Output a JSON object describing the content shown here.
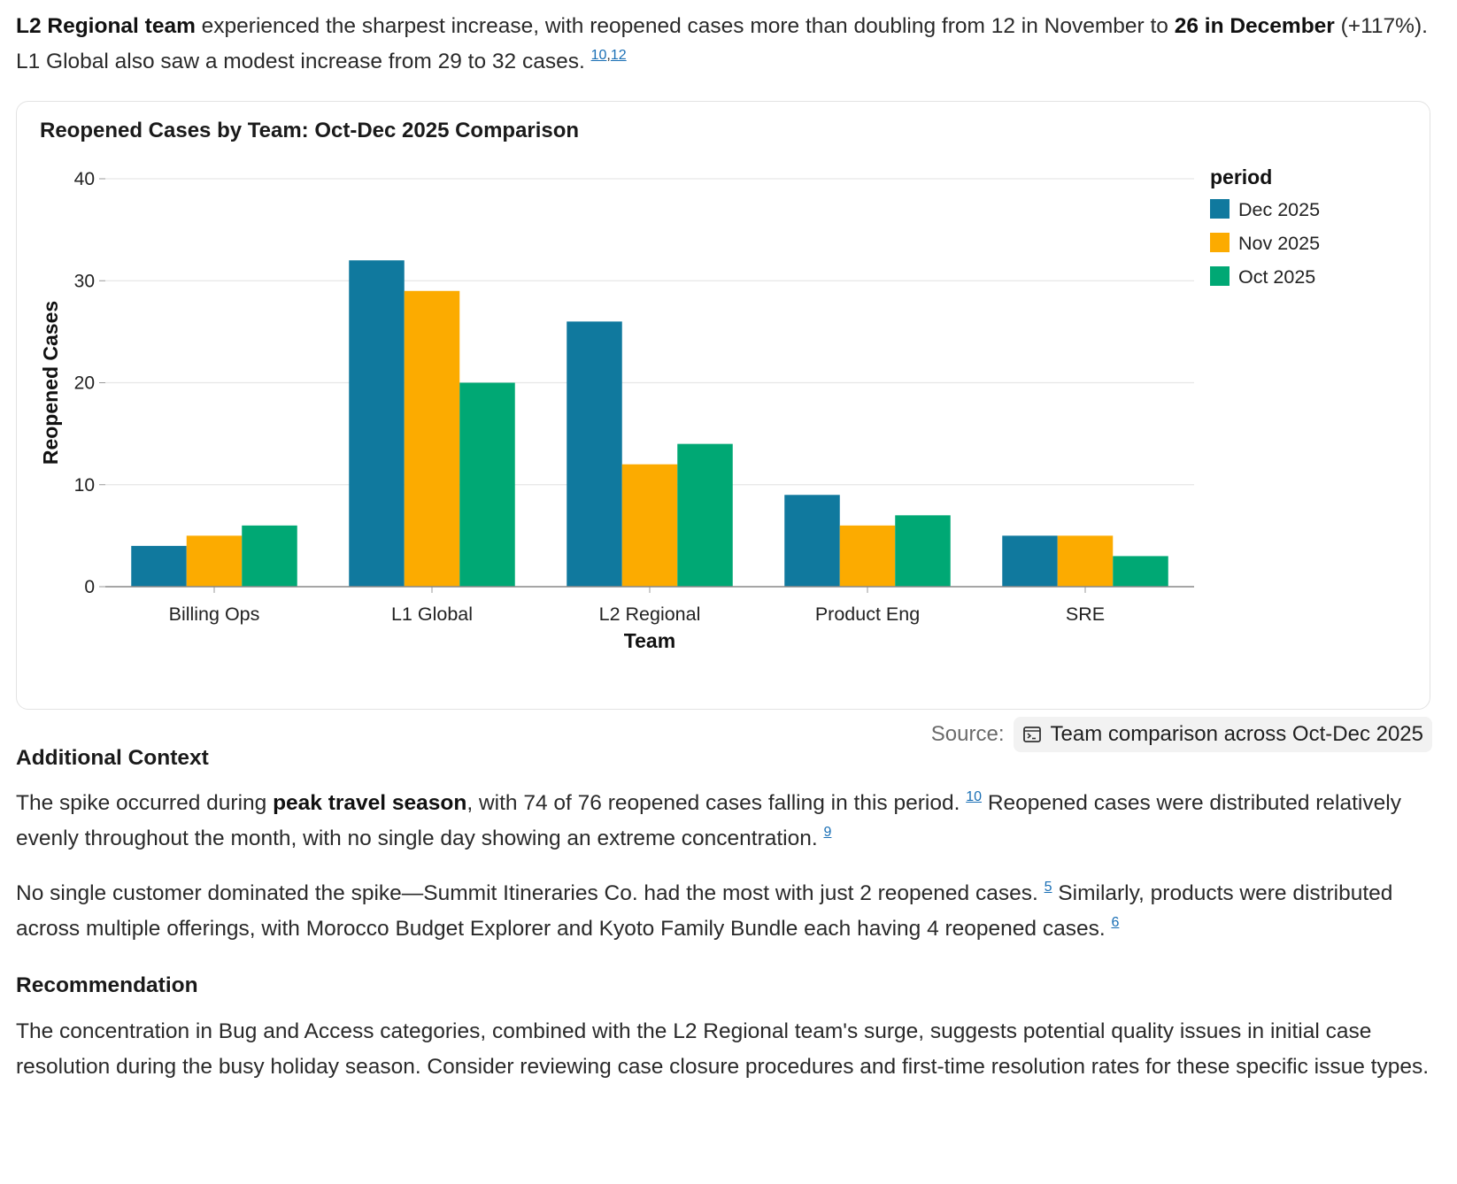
{
  "intro": {
    "part1_bold": "L2 Regional team",
    "part2": " experienced the sharpest increase, with reopened cases more than doubling from 12 in November to ",
    "part3_bold": "26 in December",
    "part4": " (+117%). L1 Global also saw a modest increase from 29 to 32 cases. ",
    "cite_a": "10",
    "cite_sep": ",",
    "cite_b": "12"
  },
  "chart_data": {
    "type": "bar",
    "title": "Reopened Cases by Team: Oct-Dec 2025 Comparison",
    "xlabel": "Team",
    "ylabel": "Reopened Cases",
    "categories": [
      "Billing Ops",
      "L1 Global",
      "L2 Regional",
      "Product Eng",
      "SRE"
    ],
    "series": [
      {
        "name": "Dec 2025",
        "color": "#10799e",
        "values": [
          4,
          32,
          26,
          9,
          5
        ]
      },
      {
        "name": "Nov 2025",
        "color": "#fcab00",
        "values": [
          5,
          29,
          12,
          6,
          5
        ]
      },
      {
        "name": "Oct 2025",
        "color": "#00a874",
        "values": [
          6,
          20,
          14,
          7,
          3
        ]
      }
    ],
    "ylim": [
      0,
      40
    ],
    "yticks": [
      0,
      10,
      20,
      30,
      40
    ],
    "grid": true,
    "legend_title": "period",
    "legend_position": "right"
  },
  "source": {
    "label": "Source:",
    "link_text": "Team comparison across Oct-Dec 2025",
    "icon": "terminal-icon"
  },
  "additional_context": {
    "heading": "Additional Context",
    "p1_part1": "The spike occurred during ",
    "p1_bold": "peak travel season",
    "p1_part2": ", with 74 of 76 reopened cases falling in this period. ",
    "p1_cite1": "10",
    "p1_part3": " Reopened cases were distributed relatively evenly throughout the month, with no single day showing an extreme concentration. ",
    "p1_cite2": "9",
    "p2_part1": "No single customer dominated the spike—Summit Itineraries Co. had the most with just 2 reopened cases. ",
    "p2_cite1": "5",
    "p2_part2": " Similarly, products were distributed across multiple offerings, with Morocco Budget Explorer and Kyoto Family Bundle each having 4 reopened cases. ",
    "p2_cite2": "6"
  },
  "recommendation": {
    "heading": "Recommendation",
    "text": "The concentration in Bug and Access categories, combined with the L2 Regional team's surge, suggests potential quality issues in initial case resolution during the busy holiday season. Consider reviewing case closure procedures and first-time resolution rates for these specific issue types."
  }
}
